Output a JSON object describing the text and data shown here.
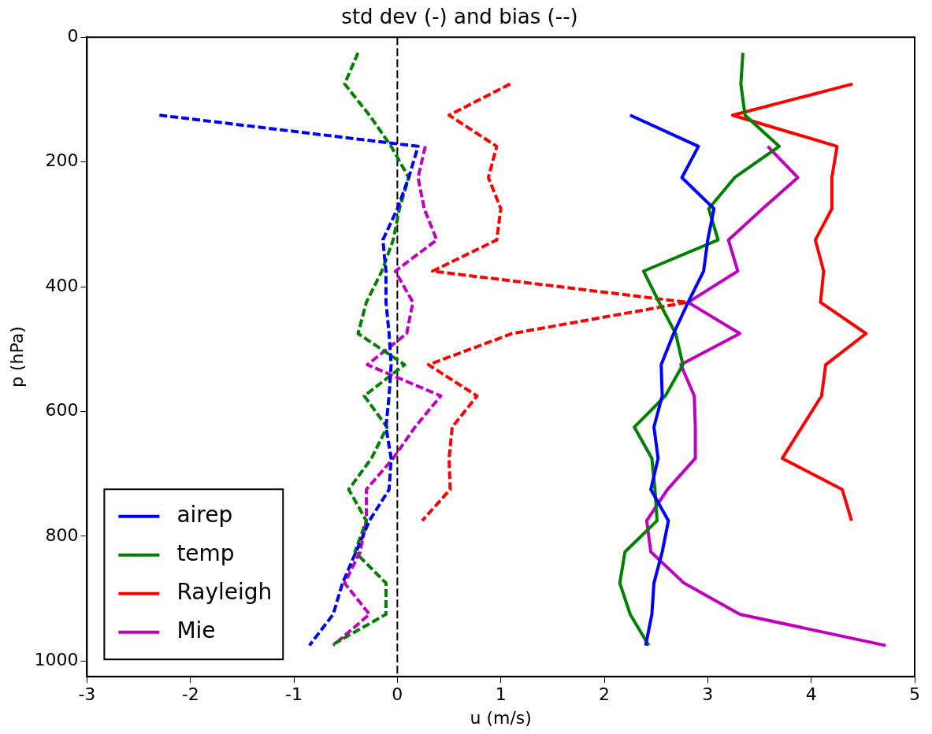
{
  "chart_data": {
    "type": "line",
    "title": "std dev (-) and bias (--)",
    "xlabel": "u (m/s)",
    "ylabel": "p (hPa)",
    "xlim": [
      -3,
      5
    ],
    "xticks": [
      -3,
      -2,
      -1,
      0,
      1,
      2,
      3,
      4,
      5
    ],
    "ylim": [
      1025,
      0
    ],
    "yticks": [
      0,
      200,
      400,
      600,
      800,
      1000
    ],
    "grid": false,
    "legend": "bottom left",
    "marker": "none",
    "ref_lines": [
      {
        "axis": "x",
        "value": 0,
        "color": "#000000",
        "line_style": "dashed"
      }
    ],
    "series": [
      {
        "name": "airep",
        "color": "#0000ff",
        "line_style": "solid",
        "x": [
          2.25,
          2.91,
          2.75,
          3.06,
          3.0,
          2.96,
          2.81,
          2.67,
          2.55,
          2.56,
          2.48,
          2.52,
          2.45,
          2.62,
          2.56,
          2.48,
          2.46,
          2.4
        ],
        "values": [
          125,
          175,
          225,
          275,
          325,
          375,
          425,
          475,
          525,
          575,
          625,
          675,
          725,
          775,
          825,
          875,
          925,
          975
        ]
      },
      {
        "name": "temp",
        "color": "#008000",
        "line_style": "solid",
        "x": [
          3.34,
          3.32,
          3.36,
          3.69,
          3.26,
          3.01,
          3.1,
          2.38,
          2.53,
          2.69,
          2.76,
          2.59,
          2.29,
          2.46,
          2.49,
          2.51,
          2.2,
          2.15,
          2.25,
          2.43
        ],
        "values": [
          25,
          75,
          125,
          175,
          225,
          275,
          325,
          375,
          425,
          475,
          525,
          575,
          625,
          675,
          725,
          775,
          825,
          875,
          925,
          975
        ]
      },
      {
        "name": "Rayleigh",
        "color": "#ff0000",
        "line_style": "solid",
        "x": [
          4.4,
          3.24,
          4.25,
          4.2,
          4.2,
          4.04,
          4.12,
          4.09,
          4.53,
          4.14,
          4.1,
          3.91,
          3.72,
          4.3,
          4.39
        ],
        "values": [
          75,
          125,
          175,
          225,
          275,
          325,
          375,
          425,
          475,
          525,
          575,
          625,
          675,
          725,
          775
        ]
      },
      {
        "name": "Mie",
        "color": "#bf00bf",
        "line_style": "solid",
        "x": [
          3.58,
          3.87,
          3.53,
          3.2,
          3.29,
          2.81,
          3.31,
          2.74,
          2.87,
          2.88,
          2.88,
          2.61,
          2.41,
          2.45,
          2.77,
          3.31,
          4.72
        ],
        "values": [
          175,
          225,
          275,
          325,
          375,
          425,
          475,
          525,
          575,
          625,
          675,
          725,
          775,
          825,
          875,
          925,
          975
        ]
      },
      {
        "color": "#0000ff",
        "line_style": "dashed",
        "x": [
          -2.3,
          0.2,
          0.11,
          0.0,
          -0.14,
          -0.11,
          -0.11,
          -0.08,
          -0.06,
          -0.08,
          -0.11,
          -0.06,
          -0.08,
          -0.27,
          -0.4,
          -0.53,
          -0.62,
          -0.85
        ],
        "values": [
          125,
          175,
          225,
          275,
          325,
          375,
          425,
          475,
          525,
          575,
          625,
          675,
          725,
          775,
          825,
          875,
          925,
          975
        ]
      },
      {
        "color": "#008000",
        "line_style": "dashed",
        "x": [
          -0.38,
          -0.51,
          -0.27,
          -0.06,
          0.11,
          0.02,
          -0.04,
          -0.15,
          -0.3,
          -0.38,
          0.07,
          -0.32,
          -0.1,
          -0.25,
          -0.47,
          -0.3,
          -0.41,
          -0.11,
          -0.11,
          -0.64
        ],
        "values": [
          25,
          75,
          125,
          175,
          225,
          275,
          325,
          375,
          425,
          475,
          525,
          575,
          625,
          675,
          725,
          775,
          825,
          875,
          925,
          975
        ]
      },
      {
        "color": "#ff0000",
        "line_style": "dashed",
        "x": [
          1.09,
          0.5,
          0.96,
          0.88,
          1.0,
          0.96,
          0.34,
          2.8,
          1.11,
          0.3,
          0.77,
          0.53,
          0.5,
          0.51,
          0.24
        ],
        "values": [
          75,
          125,
          175,
          225,
          275,
          325,
          375,
          425,
          475,
          525,
          575,
          625,
          675,
          725,
          775
        ]
      },
      {
        "color": "#bf00bf",
        "line_style": "dashed",
        "x": [
          0.27,
          0.2,
          0.26,
          0.38,
          -0.02,
          0.15,
          0.09,
          -0.29,
          0.42,
          0.17,
          -0.04,
          -0.3,
          -0.3,
          -0.36,
          -0.51,
          -0.27,
          -0.62
        ],
        "values": [
          175,
          225,
          275,
          325,
          375,
          425,
          475,
          525,
          575,
          625,
          675,
          725,
          775,
          825,
          875,
          925,
          975
        ]
      }
    ]
  }
}
